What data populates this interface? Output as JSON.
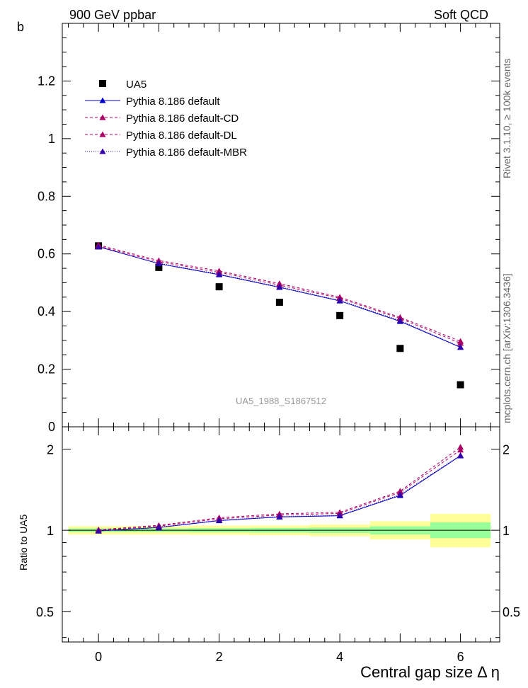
{
  "header": {
    "left": "900 GeV ppbar",
    "right": "Soft QCD"
  },
  "side_labels": {
    "rivet": "Rivet 3.1.10, ≥ 100k events",
    "mcplots": "mcplots.cern.ch [arXiv:1306.3436]"
  },
  "watermark": "UA5_1988_S1867512",
  "colors": {
    "data": "#000000",
    "default": "#0000cc",
    "cd": "#aa0066",
    "dl": "#aa0066",
    "mbr": "#3300aa",
    "band_inner": "#99ff99",
    "band_outer": "#ffff99"
  },
  "chart_data": {
    "type": "line",
    "xlabel": "Central gap size Δ η",
    "ylabel": "b",
    "xlim": [
      -0.6,
      6.65
    ],
    "ylim": [
      0,
      1.4
    ],
    "x_ticks": [
      0,
      1,
      2,
      3,
      4,
      5,
      6
    ],
    "x_tick_labels": [
      "0",
      "2",
      "4",
      "6"
    ],
    "x_tick_label_values": [
      0,
      2,
      4,
      6
    ],
    "y_tick_labels": [
      "0",
      "0.2",
      "0.4",
      "0.6",
      "0.8",
      "1",
      "1.2"
    ],
    "y_tick_values": [
      0,
      0.2,
      0.4,
      0.6,
      0.8,
      1.0,
      1.2
    ],
    "legend_position": "top-left",
    "x": [
      0,
      1,
      2,
      3,
      4,
      5,
      6
    ],
    "series": [
      {
        "name": "UA5",
        "style": "data",
        "values": [
          0.628,
          0.553,
          0.486,
          0.432,
          0.386,
          0.272,
          0.146
        ]
      },
      {
        "name": "Pythia 8.186 default",
        "style": "default",
        "values": [
          0.625,
          0.566,
          0.528,
          0.484,
          0.437,
          0.366,
          0.276
        ]
      },
      {
        "name": "Pythia 8.186 default-CD",
        "style": "cd",
        "values": [
          0.631,
          0.577,
          0.541,
          0.497,
          0.45,
          0.38,
          0.297
        ]
      },
      {
        "name": "Pythia 8.186 default-DL",
        "style": "dl",
        "values": [
          0.627,
          0.573,
          0.536,
          0.492,
          0.446,
          0.376,
          0.29
        ]
      },
      {
        "name": "Pythia 8.186 default-MBR",
        "style": "mbr",
        "values": [
          0.624,
          0.568,
          0.53,
          0.486,
          0.439,
          0.369,
          0.277
        ]
      }
    ],
    "ratio": {
      "ylabel": "Ratio to UA5",
      "y_tick_labels": [
        "0.5",
        "1",
        "2"
      ],
      "y_tick_values": [
        0.5,
        1,
        2
      ],
      "band_inner": [
        {
          "x0": -0.5,
          "x1": 0.5,
          "lo": 0.985,
          "hi": 1.015
        },
        {
          "x0": 0.5,
          "x1": 1.5,
          "lo": 0.985,
          "hi": 1.015
        },
        {
          "x0": 1.5,
          "x1": 2.5,
          "lo": 0.982,
          "hi": 1.018
        },
        {
          "x0": 2.5,
          "x1": 3.5,
          "lo": 0.98,
          "hi": 1.02
        },
        {
          "x0": 3.5,
          "x1": 4.5,
          "lo": 0.977,
          "hi": 1.023
        },
        {
          "x0": 4.5,
          "x1": 5.5,
          "lo": 0.965,
          "hi": 1.035
        },
        {
          "x0": 5.5,
          "x1": 6.5,
          "lo": 0.935,
          "hi": 1.07
        }
      ],
      "band_outer": [
        {
          "x0": -0.5,
          "x1": 0.5,
          "lo": 0.965,
          "hi": 1.035
        },
        {
          "x0": 0.5,
          "x1": 1.5,
          "lo": 0.965,
          "hi": 1.035
        },
        {
          "x0": 1.5,
          "x1": 2.5,
          "lo": 0.962,
          "hi": 1.04
        },
        {
          "x0": 2.5,
          "x1": 3.5,
          "lo": 0.958,
          "hi": 1.042
        },
        {
          "x0": 3.5,
          "x1": 4.5,
          "lo": 0.95,
          "hi": 1.05
        },
        {
          "x0": 4.5,
          "x1": 5.5,
          "lo": 0.925,
          "hi": 1.08
        },
        {
          "x0": 5.5,
          "x1": 6.5,
          "lo": 0.865,
          "hi": 1.15
        }
      ],
      "series": [
        {
          "name": "Pythia 8.186 default",
          "style": "default",
          "values": [
            0.995,
            1.024,
            1.086,
            1.12,
            1.132,
            1.346,
            1.89
          ]
        },
        {
          "name": "Pythia 8.186 default-CD",
          "style": "cd",
          "values": [
            1.005,
            1.043,
            1.113,
            1.15,
            1.166,
            1.397,
            2.035
          ]
        },
        {
          "name": "Pythia 8.186 default-DL",
          "style": "dl",
          "values": [
            0.998,
            1.036,
            1.103,
            1.139,
            1.155,
            1.382,
            1.986
          ]
        },
        {
          "name": "Pythia 8.186 default-MBR",
          "style": "mbr",
          "values": [
            0.994,
            1.027,
            1.09,
            1.125,
            1.137,
            1.357,
            1.897
          ]
        }
      ]
    }
  }
}
